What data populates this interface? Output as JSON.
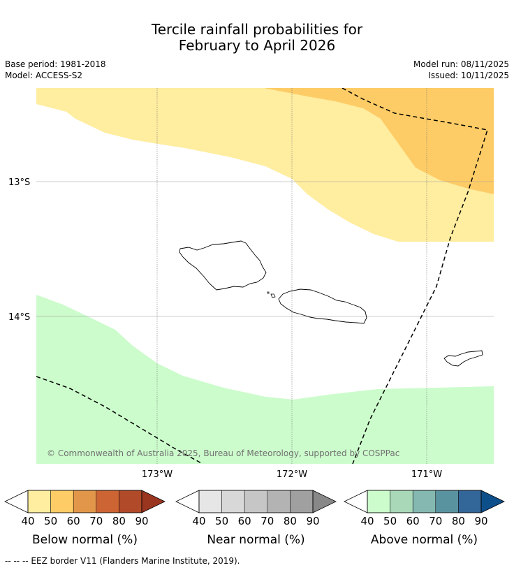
{
  "title_line1": "Tercile rainfall probabilities for",
  "title_line2": "February to April 2026",
  "base_period": "Base period: 1981-2018",
  "model": "Model: ACCESS-S2",
  "model_run": "Model run: 08/11/2025",
  "issued": "Issued: 10/11/2025",
  "lat_labels": [
    "13°S",
    "14°S"
  ],
  "lon_labels": [
    "173°W",
    "172°W",
    "171°W"
  ],
  "copyright": "© Commonwealth of Australia 2025, Bureau of Meteorology, supported by COSPPac",
  "colorbars": [
    {
      "label": "Below normal (%)",
      "ticks": [
        "40",
        "50",
        "60",
        "70",
        "80",
        "90"
      ],
      "colors": [
        "#ffeda0",
        "#fecc66",
        "#e2964a",
        "#cc6433",
        "#b04a28",
        "#9a3520"
      ]
    },
    {
      "label": "Near normal (%)",
      "ticks": [
        "40",
        "50",
        "60",
        "70",
        "80",
        "90"
      ],
      "colors": [
        "#e6e6e6",
        "#d8d8d8",
        "#c6c6c6",
        "#b3b3b3",
        "#a0a0a0",
        "#888888"
      ]
    },
    {
      "label": "Above normal (%)",
      "ticks": [
        "40",
        "50",
        "60",
        "70",
        "80",
        "90"
      ],
      "colors": [
        "#ccfccc",
        "#a8d8b8",
        "#84b8b0",
        "#5a93a0",
        "#336699",
        "#0d4f8b"
      ]
    }
  ],
  "eez_note": "--  --  -- EEZ border V11 (Flanders Marine Institute, 2019).",
  "colors": {
    "below40": "#ffeda0",
    "below50": "#fecc66",
    "above40": "#ccfccc"
  }
}
